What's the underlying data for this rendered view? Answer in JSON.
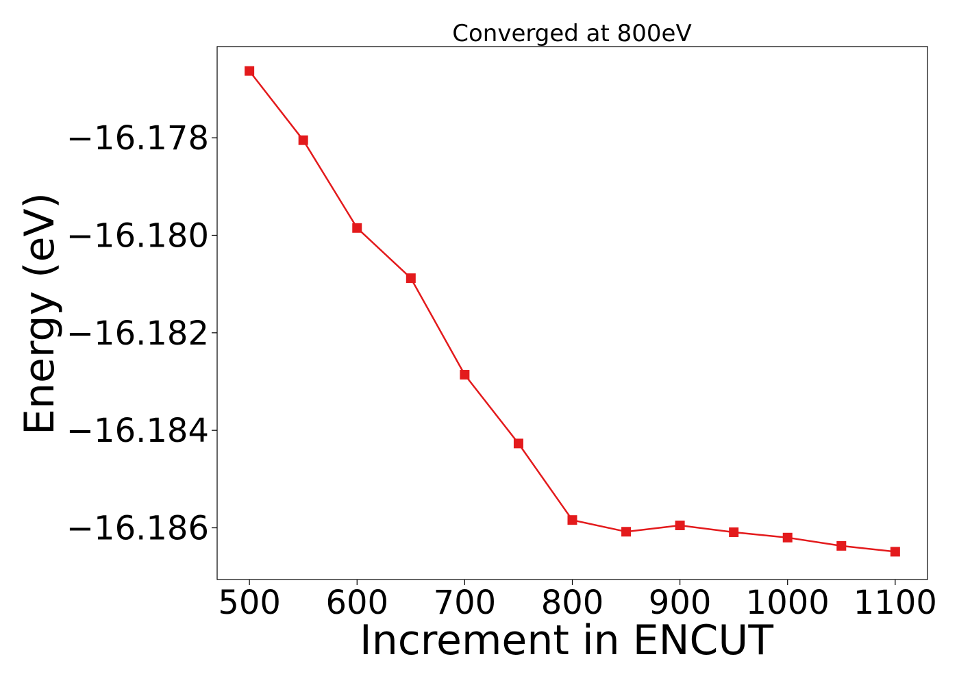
{
  "chart_data": {
    "type": "line",
    "title": "Converged at 800eV",
    "xlabel": "Increment in ENCUT",
    "ylabel": "Energy (eV)",
    "xlim": [
      470,
      1130
    ],
    "ylim": [
      -16.18706,
      -16.17613
    ],
    "xticks": [
      500,
      600,
      700,
      800,
      900,
      1000,
      1100
    ],
    "yticks": [
      -16.178,
      -16.18,
      -16.182,
      -16.184,
      -16.186
    ],
    "ytick_labels": [
      "−16.178",
      "−16.180",
      "−16.182",
      "−16.184",
      "−16.186"
    ],
    "grid": false,
    "series": [
      {
        "color": "#e31a1c",
        "marker": "square",
        "x": [
          500,
          550,
          600,
          650,
          700,
          750,
          800,
          850,
          900,
          950,
          1000,
          1050,
          1100
        ],
        "y": [
          -16.17663,
          -16.17805,
          -16.17985,
          -16.18088,
          -16.18286,
          -16.18427,
          -16.18584,
          -16.18608,
          -16.18595,
          -16.18609,
          -16.1862,
          -16.18637,
          -16.18649
        ]
      }
    ]
  }
}
